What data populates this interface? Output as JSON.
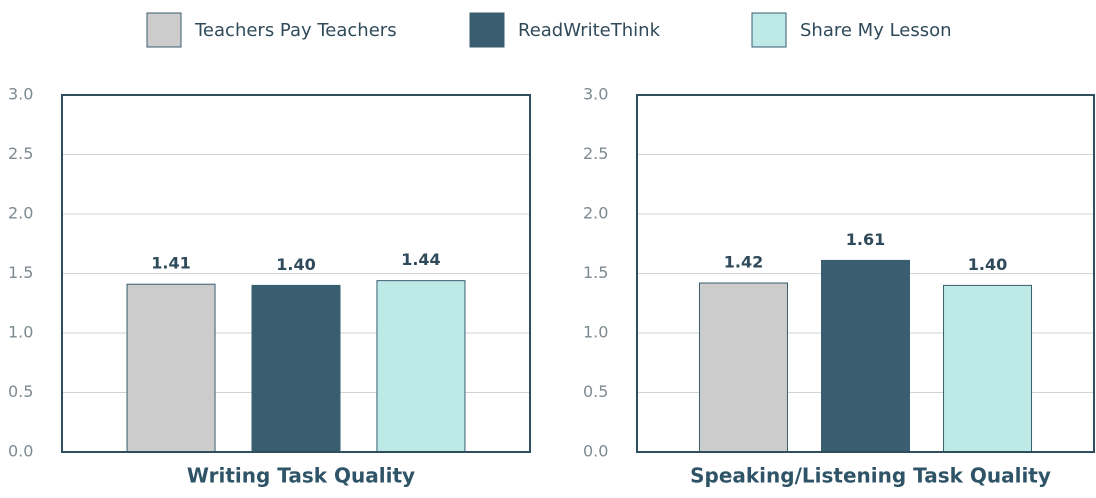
{
  "legend": {
    "items": [
      {
        "name": "Teachers Pay Teachers",
        "color": "#cccccc"
      },
      {
        "name": "ReadWriteThink",
        "color": "#3a5d70"
      },
      {
        "name": "Share My Lesson",
        "color": "#bde9e7"
      }
    ]
  },
  "chart_data": [
    {
      "type": "bar",
      "title": "Writing Task Quality",
      "values": [
        1.41,
        1.4,
        1.44
      ],
      "value_labels": [
        "1.41",
        "1.40",
        "1.44"
      ],
      "ylim": [
        0,
        3
      ],
      "yticks": [
        {
          "value": 0,
          "label": "0.0"
        },
        {
          "value": 0.5,
          "label": "0.5"
        },
        {
          "value": 1,
          "label": "1.0"
        },
        {
          "value": 1.5,
          "label": "1.5"
        },
        {
          "value": 2,
          "label": "2.0"
        },
        {
          "value": 2.5,
          "label": "2.5"
        },
        {
          "value": 3,
          "label": "3.0"
        }
      ],
      "grid": true
    },
    {
      "type": "bar",
      "title": "Speaking/Listening Task Quality",
      "values": [
        1.42,
        1.61,
        1.4
      ],
      "value_labels": [
        "1.42",
        "1.61",
        "1.40"
      ],
      "ylim": [
        0,
        3
      ],
      "yticks": [
        {
          "value": 0,
          "label": "0.0"
        },
        {
          "value": 0.5,
          "label": "0.5"
        },
        {
          "value": 1,
          "label": "1.0"
        },
        {
          "value": 1.5,
          "label": "1.5"
        },
        {
          "value": 2,
          "label": "2.0"
        },
        {
          "value": 2.5,
          "label": "2.5"
        },
        {
          "value": 3,
          "label": "3.0"
        }
      ],
      "grid": true
    }
  ]
}
